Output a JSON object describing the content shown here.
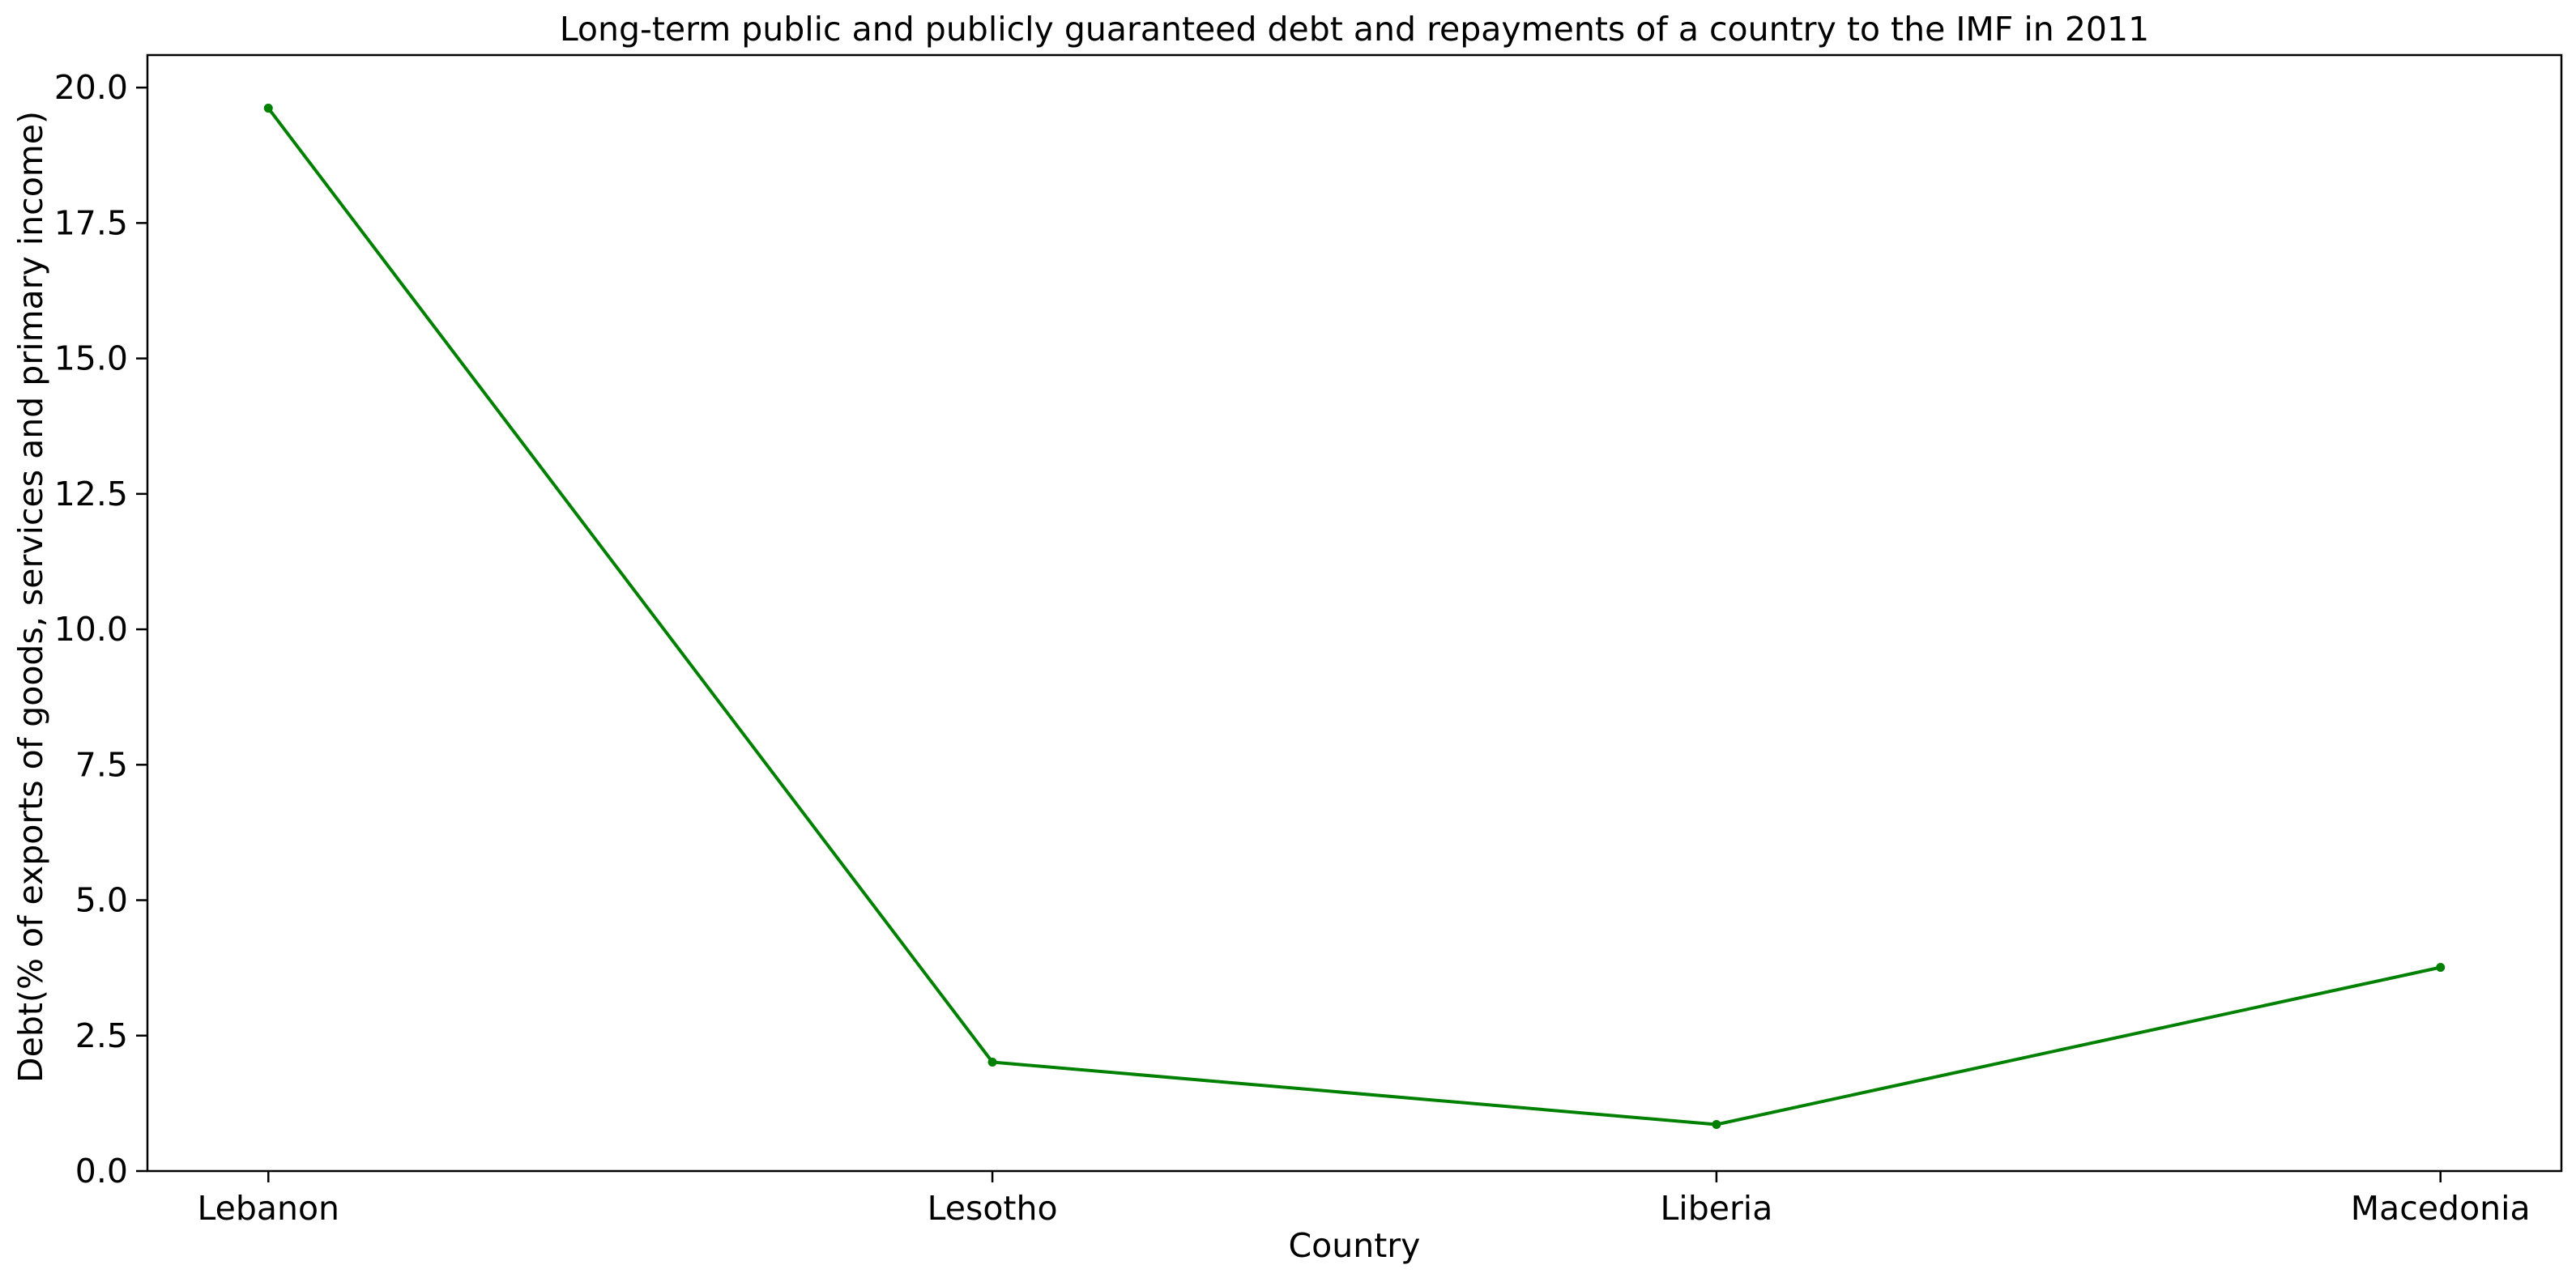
{
  "chart_data": {
    "type": "line",
    "title": "Long-term public and publicly guaranteed debt and repayments of a country to the IMF in 2011",
    "xlabel": "Country",
    "ylabel": "Debt(% of exports of goods, services and primary income)",
    "categories": [
      "Lebanon",
      "Lesotho",
      "Liberia",
      "Macedonia"
    ],
    "series": [
      {
        "values": [
          19.62,
          2.01,
          0.86,
          3.76
        ]
      }
    ],
    "ylim": [
      0,
      20.6
    ],
    "yticks": [
      0.0,
      2.5,
      5.0,
      7.5,
      10.0,
      12.5,
      15.0,
      17.5,
      20.0
    ],
    "ytick_labels": [
      "0.0",
      "2.5",
      "5.0",
      "7.5",
      "10.0",
      "12.5",
      "15.0",
      "17.5",
      "20.0"
    ],
    "grid": false,
    "legend": false,
    "colors": {
      "line": "#008000",
      "axes": "#000000",
      "background": "#ffffff"
    }
  }
}
